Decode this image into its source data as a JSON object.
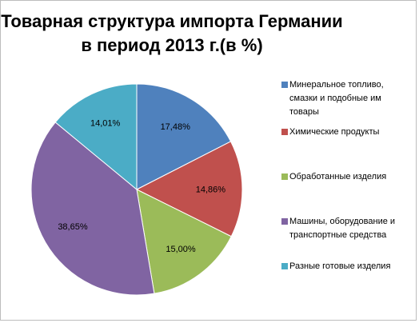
{
  "chart_data": {
    "type": "pie",
    "title_line1": "Товарная структура импорта Германии",
    "title_line2": "в период 2013 г.(в %)",
    "categories": [
      "Минеральное топливо, смазки и подобные им товары",
      "Химические продукты",
      "Обработанные изделия",
      "Машины, оборудование и транспортные средства",
      "Разные готовые изделия"
    ],
    "values": [
      17.48,
      14.86,
      15.0,
      38.65,
      14.01
    ],
    "value_labels": [
      "17,48%",
      "14,86%",
      "15,00%",
      "38,65%",
      "14,01%"
    ],
    "colors": [
      "#4f81bd",
      "#c0504d",
      "#9bbb59",
      "#8064a2",
      "#4bacc6"
    ],
    "legend_position": "right",
    "start_angle": "12 o'clock",
    "direction": "clockwise"
  },
  "legend": [
    {
      "lines": [
        "Минеральное топливо,",
        "смазки и подобные им",
        "товары"
      ]
    },
    {
      "lines": [
        "Химические продукты"
      ]
    },
    {
      "lines": [
        "Обработанные изделия"
      ]
    },
    {
      "lines": [
        "Машины, оборудование и",
        "транспортные средства"
      ]
    },
    {
      "lines": [
        "Разные готовые изделия"
      ]
    }
  ]
}
